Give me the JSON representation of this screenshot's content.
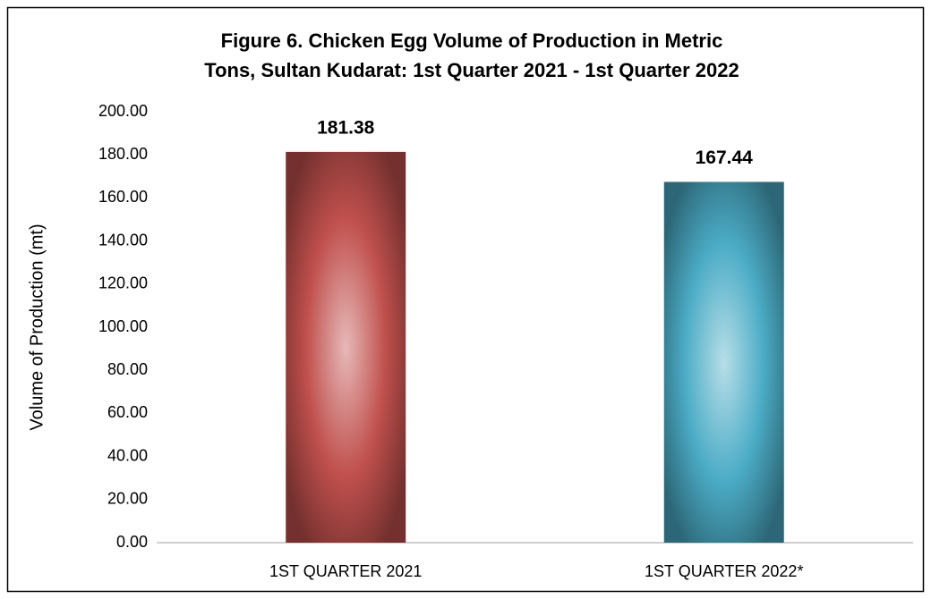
{
  "chart_data": {
    "type": "bar",
    "title": [
      "Figure 6. Chicken Egg Volume of Production in Metric",
      "Tons, Sultan Kudarat: 1st Quarter 2021 - 1st Quarter 2022"
    ],
    "y_label": "Volume of Production (mt)",
    "categories": [
      "1ST QUARTER 2021",
      "1ST QUARTER 2022*"
    ],
    "values": [
      181.38,
      167.44
    ],
    "colors": [
      "#c0504d",
      "#4bacc6"
    ],
    "ylim": [
      0,
      200
    ],
    "yticks": [
      {
        "value": 0,
        "label": "0.00"
      },
      {
        "value": 20,
        "label": "20.00"
      },
      {
        "value": 40,
        "label": "40.00"
      },
      {
        "value": 60,
        "label": "60.00"
      },
      {
        "value": 80,
        "label": "80.00"
      },
      {
        "value": 100,
        "label": "100.00"
      },
      {
        "value": 120,
        "label": "120.00"
      },
      {
        "value": 140,
        "label": "140.00"
      },
      {
        "value": 160,
        "label": "160.00"
      },
      {
        "value": 180,
        "label": "180.00"
      },
      {
        "value": 200,
        "label": "200.00"
      }
    ],
    "grid": false
  }
}
